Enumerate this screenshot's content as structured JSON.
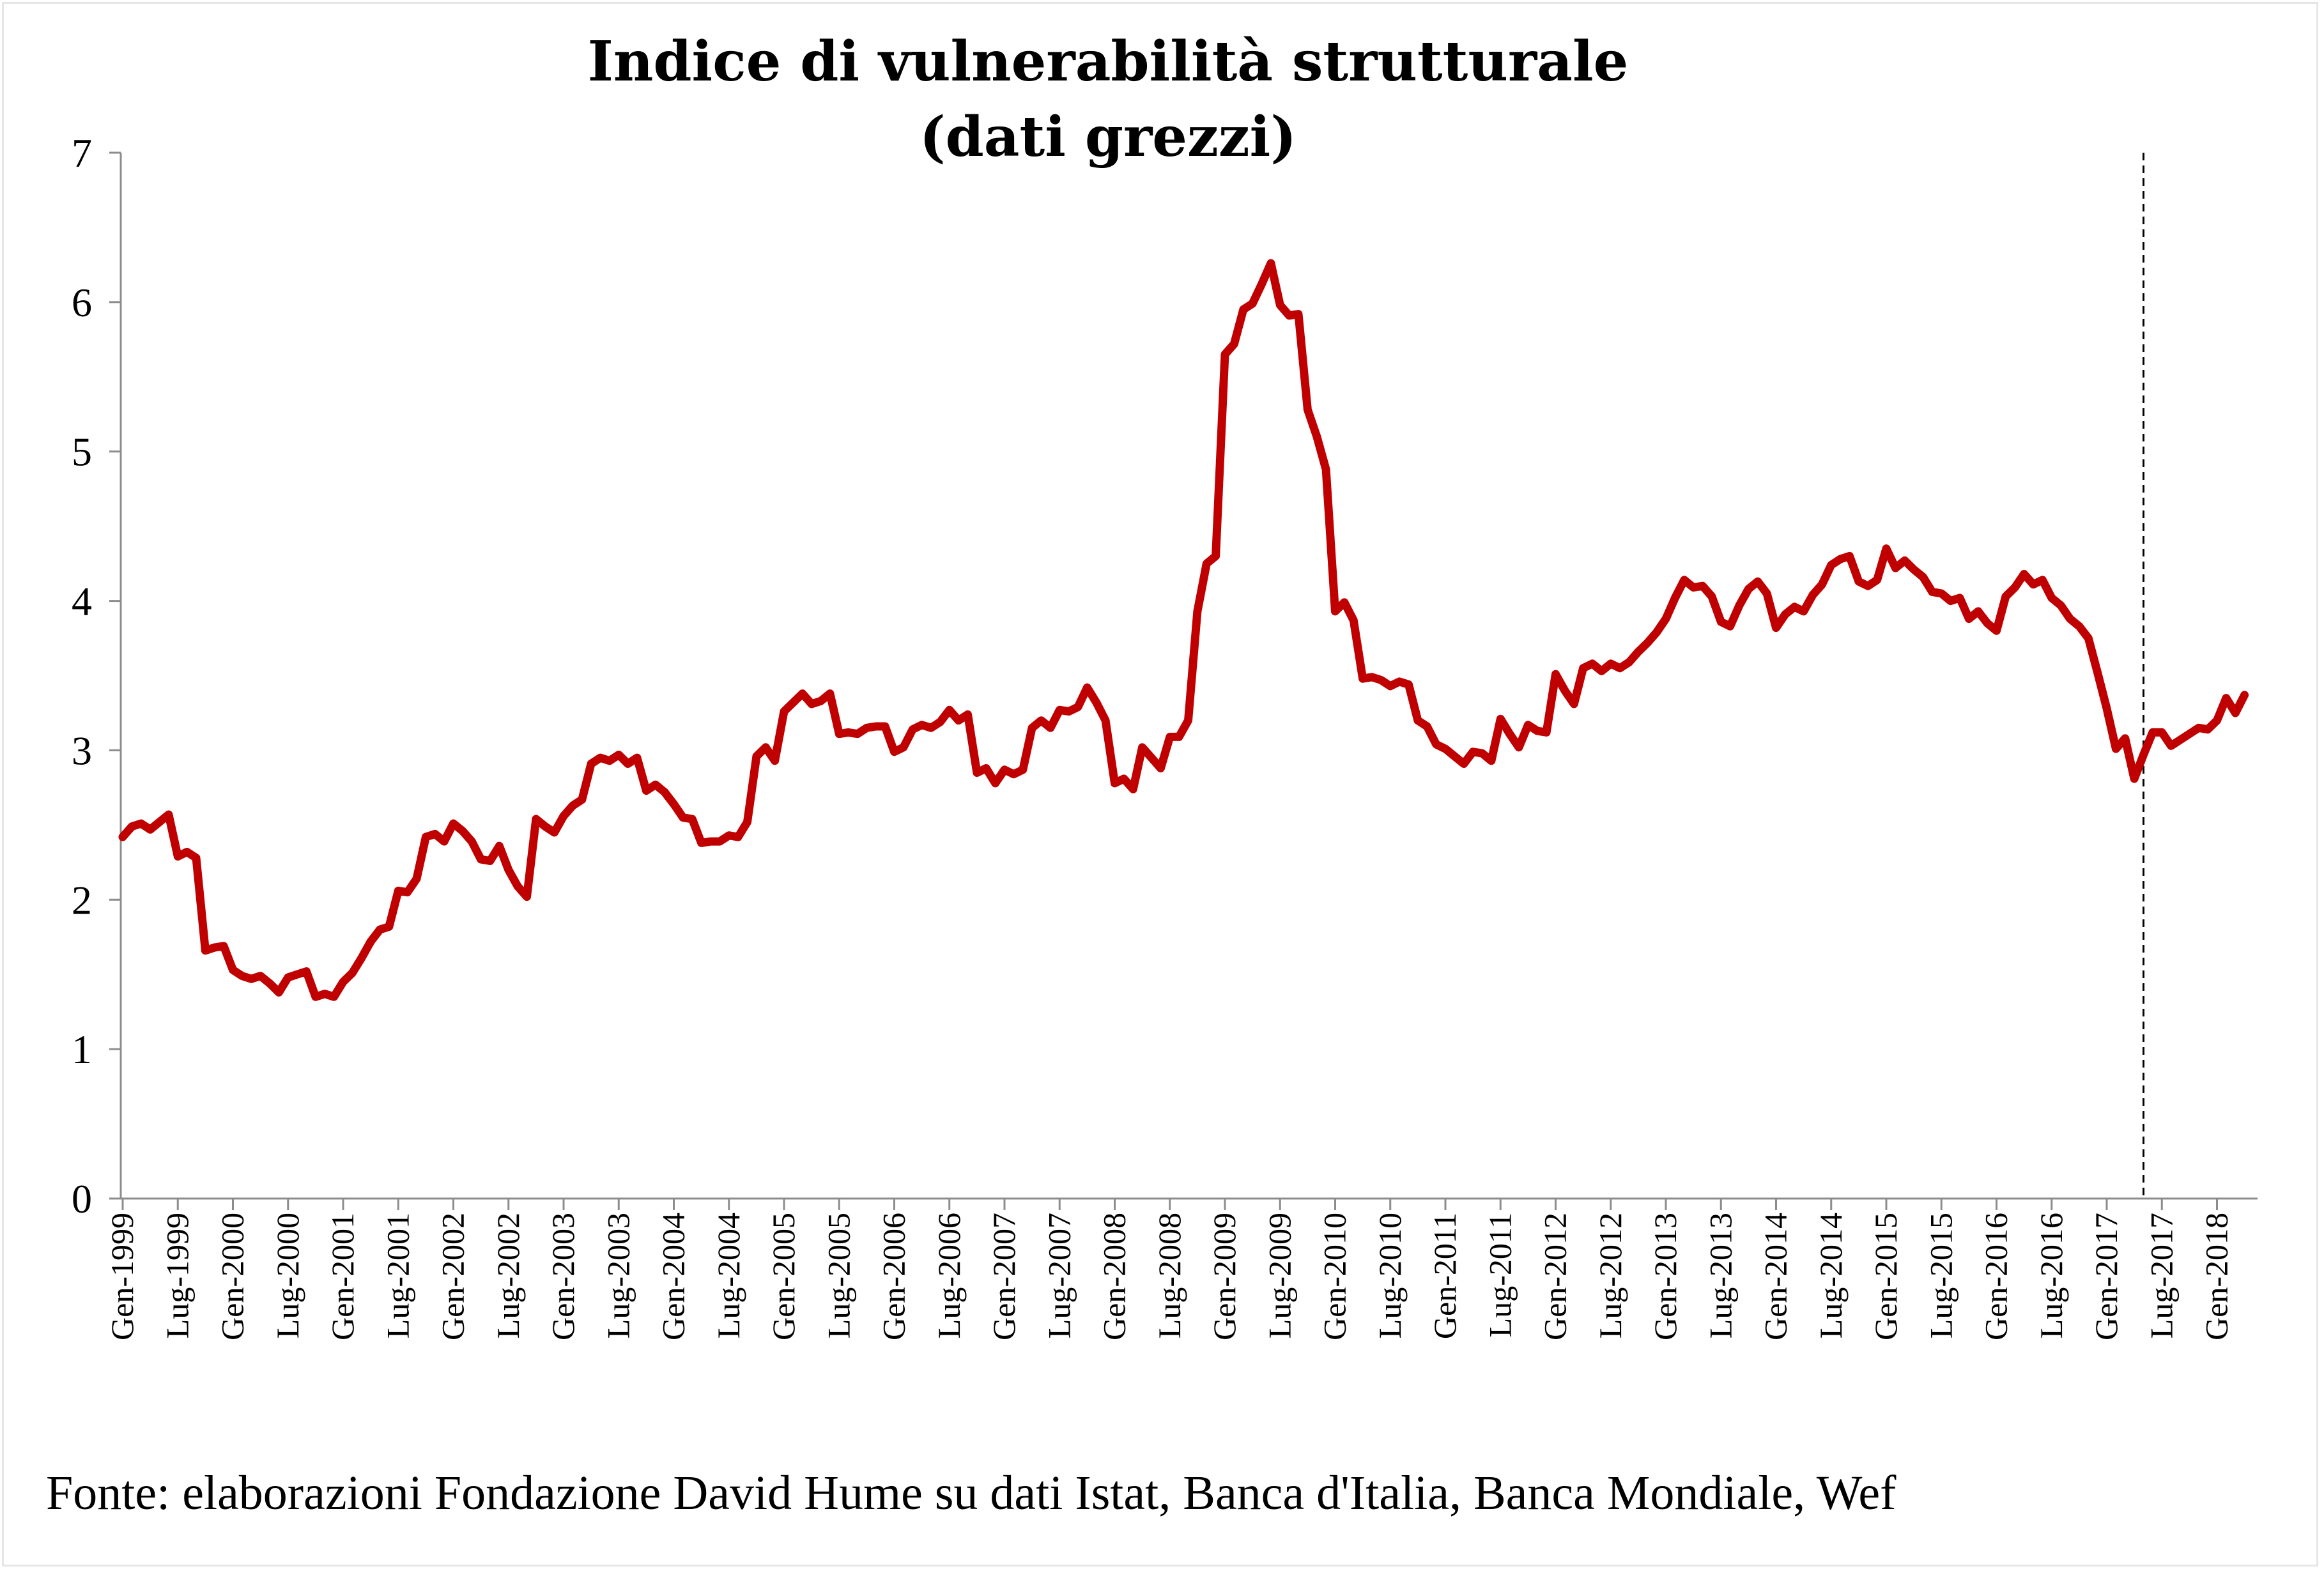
{
  "source_note": "Fonte: elaborazioni Fondazione David Hume su dati Istat, Banca d'Italia, Banca Mondiale, Wef",
  "chart_data": {
    "type": "line",
    "title": "Indice di vulnerabilità strutturale",
    "subtitle": "(dati grezzi)",
    "xlabel": "",
    "ylabel": "",
    "ylim": [
      0,
      7
    ],
    "yticks": [
      0,
      1,
      2,
      3,
      4,
      5,
      6,
      7
    ],
    "x_start": "Gen-1999",
    "x_end": "Mag-2018",
    "xtick_labels": [
      "Gen-1999",
      "Lug-1999",
      "Gen-2000",
      "Lug-2000",
      "Gen-2001",
      "Lug-2001",
      "Gen-2002",
      "Lug-2002",
      "Gen-2003",
      "Lug-2003",
      "Gen-2004",
      "Lug-2004",
      "Gen-2005",
      "Lug-2005",
      "Gen-2006",
      "Lug-2006",
      "Gen-2007",
      "Lug-2007",
      "Gen-2008",
      "Lug-2008",
      "Gen-2009",
      "Lug-2009",
      "Gen-2010",
      "Lug-2010",
      "Gen-2011",
      "Lug-2011",
      "Gen-2012",
      "Lug-2012",
      "Gen-2013",
      "Lug-2013",
      "Gen-2014",
      "Lug-2014",
      "Gen-2015",
      "Lug-2015",
      "Gen-2016",
      "Lug-2016",
      "Gen-2017",
      "Lug-2017",
      "Gen-2018"
    ],
    "vertical_marker": "Mag-2017",
    "grid": false,
    "legend": "none",
    "line_color": "#C00000",
    "series": [
      {
        "values": [
          2.42,
          2.49,
          2.51,
          2.47,
          2.52,
          2.57,
          2.29,
          2.32,
          2.28,
          1.66,
          1.68,
          1.69,
          1.53,
          1.49,
          1.47,
          1.49,
          1.44,
          1.38,
          1.48,
          1.5,
          1.52,
          1.35,
          1.37,
          1.35,
          1.45,
          1.51,
          1.61,
          1.72,
          1.8,
          1.82,
          2.06,
          2.05,
          2.14,
          2.42,
          2.44,
          2.39,
          2.51,
          2.46,
          2.39,
          2.27,
          2.26,
          2.36,
          2.2,
          2.09,
          2.02,
          2.54,
          2.49,
          2.45,
          2.56,
          2.63,
          2.67,
          2.91,
          2.95,
          2.93,
          2.97,
          2.91,
          2.95,
          2.73,
          2.77,
          2.72,
          2.64,
          2.55,
          2.54,
          2.38,
          2.39,
          2.39,
          2.43,
          2.42,
          2.52,
          2.96,
          3.02,
          2.93,
          3.26,
          3.32,
          3.38,
          3.31,
          3.33,
          3.38,
          3.11,
          3.12,
          3.11,
          3.15,
          3.16,
          3.16,
          2.99,
          3.02,
          3.14,
          3.17,
          3.15,
          3.19,
          3.27,
          3.2,
          3.24,
          2.85,
          2.88,
          2.78,
          2.87,
          2.84,
          2.87,
          3.15,
          3.2,
          3.15,
          3.27,
          3.26,
          3.29,
          3.42,
          3.32,
          3.2,
          2.78,
          2.81,
          2.74,
          3.02,
          2.95,
          2.88,
          3.09,
          3.09,
          3.2,
          3.93,
          4.25,
          4.3,
          5.65,
          5.72,
          5.95,
          5.99,
          6.12,
          6.26,
          5.98,
          5.91,
          5.92,
          5.28,
          5.1,
          4.88,
          3.93,
          3.99,
          3.87,
          3.48,
          3.49,
          3.47,
          3.43,
          3.46,
          3.44,
          3.2,
          3.16,
          3.04,
          3.01,
          2.96,
          2.91,
          2.99,
          2.98,
          2.93,
          3.21,
          3.11,
          3.02,
          3.17,
          3.13,
          3.12,
          3.51,
          3.4,
          3.31,
          3.55,
          3.58,
          3.53,
          3.58,
          3.55,
          3.59,
          3.66,
          3.72,
          3.79,
          3.88,
          4.02,
          4.14,
          4.09,
          4.1,
          4.03,
          3.86,
          3.83,
          3.97,
          4.08,
          4.13,
          4.05,
          3.82,
          3.91,
          3.96,
          3.93,
          4.04,
          4.11,
          4.24,
          4.28,
          4.3,
          4.13,
          4.1,
          4.14,
          4.35,
          4.22,
          4.27,
          4.21,
          4.16,
          4.06,
          4.05,
          4.0,
          4.02,
          3.88,
          3.93,
          3.85,
          3.8,
          4.03,
          4.09,
          4.18,
          4.11,
          4.14,
          4.02,
          3.97,
          3.88,
          3.83,
          3.75,
          3.52,
          3.28,
          3.01,
          3.08,
          2.81,
          2.97,
          3.12,
          3.12,
          3.03,
          3.07,
          3.11,
          3.15,
          3.14,
          3.2,
          3.35,
          3.25,
          3.37
        ]
      }
    ]
  }
}
